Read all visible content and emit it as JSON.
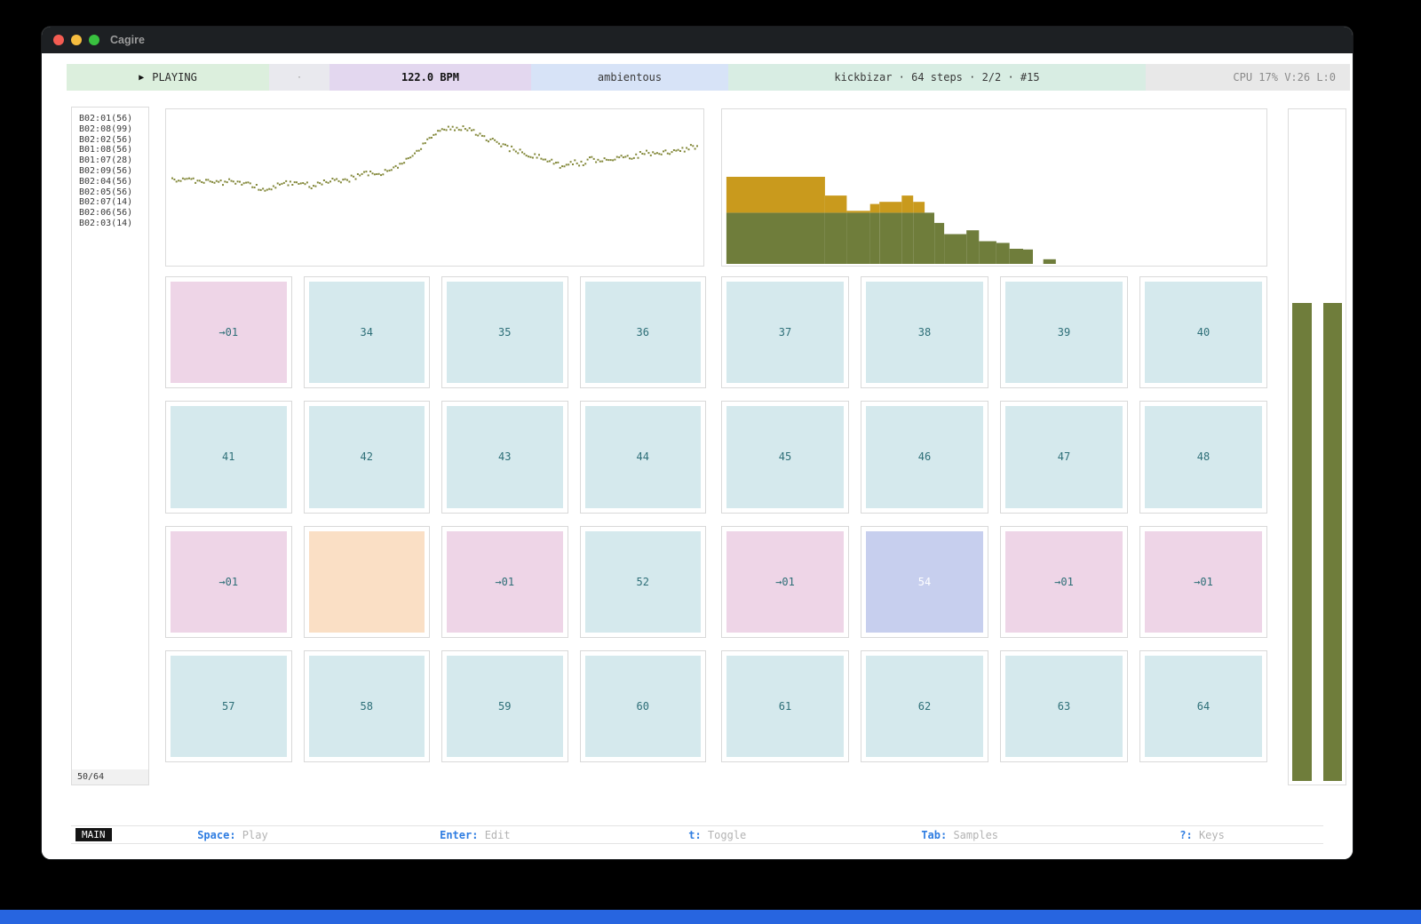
{
  "window": {
    "title": "Cagire"
  },
  "toolbar": {
    "play_icon": "▶",
    "transport": "PLAYING",
    "dot": "·",
    "bpm": "122.0 BPM",
    "scene": "ambientous",
    "pattern_info": "kickbizar · 64 steps · 2/2 · #15",
    "stats": "CPU 17%  V:26  L:0"
  },
  "sidebar": {
    "items": [
      "B02:01(56)",
      "B02:08(99)",
      "B02:02(56)",
      "B01:08(56)",
      "B01:07(28)",
      "B02:09(56)",
      "B02:04(56)",
      "B02:05(56)",
      "B02:07(14)",
      "B02:06(56)",
      "B02:03(14)"
    ],
    "footer": "50/64"
  },
  "chart_data": [
    {
      "type": "scatter",
      "title": "pattern-waveform",
      "xlabel": "",
      "ylabel": "",
      "grid": false,
      "dot_count": 250,
      "keypoints": [
        [
          0.0,
          0.46
        ],
        [
          0.02,
          0.44
        ],
        [
          0.045,
          0.465
        ],
        [
          0.07,
          0.45
        ],
        [
          0.09,
          0.475
        ],
        [
          0.11,
          0.46
        ],
        [
          0.13,
          0.475
        ],
        [
          0.155,
          0.5
        ],
        [
          0.18,
          0.525
        ],
        [
          0.2,
          0.49
        ],
        [
          0.22,
          0.475
        ],
        [
          0.245,
          0.465
        ],
        [
          0.27,
          0.5
        ],
        [
          0.29,
          0.47
        ],
        [
          0.31,
          0.44
        ],
        [
          0.33,
          0.46
        ],
        [
          0.35,
          0.425
        ],
        [
          0.37,
          0.4
        ],
        [
          0.39,
          0.425
        ],
        [
          0.41,
          0.385
        ],
        [
          0.43,
          0.35
        ],
        [
          0.45,
          0.3
        ],
        [
          0.47,
          0.235
        ],
        [
          0.49,
          0.16
        ],
        [
          0.51,
          0.1
        ],
        [
          0.53,
          0.075
        ],
        [
          0.55,
          0.08
        ],
        [
          0.57,
          0.1
        ],
        [
          0.59,
          0.13
        ],
        [
          0.61,
          0.17
        ],
        [
          0.63,
          0.21
        ],
        [
          0.65,
          0.235
        ],
        [
          0.67,
          0.26
        ],
        [
          0.69,
          0.28
        ],
        [
          0.71,
          0.3
        ],
        [
          0.73,
          0.33
        ],
        [
          0.745,
          0.355
        ],
        [
          0.76,
          0.32
        ],
        [
          0.78,
          0.335
        ],
        [
          0.8,
          0.3
        ],
        [
          0.82,
          0.315
        ],
        [
          0.84,
          0.3
        ],
        [
          0.86,
          0.275
        ],
        [
          0.88,
          0.29
        ],
        [
          0.9,
          0.255
        ],
        [
          0.92,
          0.27
        ],
        [
          0.94,
          0.245
        ],
        [
          0.96,
          0.26
        ],
        [
          0.98,
          0.225
        ],
        [
          1.0,
          0.205
        ]
      ]
    },
    {
      "type": "bar",
      "title": "sample-histogram",
      "stacked": true,
      "series_names": [
        "base",
        "accent"
      ],
      "segments": [
        {
          "x0": 0.008,
          "x1": 0.189,
          "g": 0.335,
          "y": 0.235
        },
        {
          "x0": 0.189,
          "x1": 0.229,
          "g": 0.335,
          "y": 0.112
        },
        {
          "x0": 0.229,
          "x1": 0.272,
          "g": 0.335,
          "y": 0.012
        },
        {
          "x0": 0.272,
          "x1": 0.289,
          "g": 0.335,
          "y": 0.057
        },
        {
          "x0": 0.289,
          "x1": 0.33,
          "g": 0.335,
          "y": 0.071
        },
        {
          "x0": 0.33,
          "x1": 0.351,
          "g": 0.335,
          "y": 0.112
        },
        {
          "x0": 0.351,
          "x1": 0.372,
          "g": 0.335,
          "y": 0.071
        },
        {
          "x0": 0.372,
          "x1": 0.39,
          "g": 0.335,
          "y": 0
        },
        {
          "x0": 0.39,
          "x1": 0.408,
          "g": 0.268,
          "y": 0
        },
        {
          "x0": 0.408,
          "x1": 0.449,
          "g": 0.195,
          "y": 0
        },
        {
          "x0": 0.449,
          "x1": 0.472,
          "g": 0.22,
          "y": 0
        },
        {
          "x0": 0.472,
          "x1": 0.504,
          "g": 0.148,
          "y": 0
        },
        {
          "x0": 0.504,
          "x1": 0.528,
          "g": 0.137,
          "y": 0
        },
        {
          "x0": 0.528,
          "x1": 0.553,
          "g": 0.099,
          "y": 0
        },
        {
          "x0": 0.553,
          "x1": 0.571,
          "g": 0.094,
          "y": 0
        },
        {
          "x0": 0.59,
          "x1": 0.613,
          "g": 0.03,
          "y": 0
        }
      ]
    }
  ],
  "grid": {
    "cells": [
      {
        "label": "→01",
        "color": "pink"
      },
      {
        "label": "34",
        "color": "cyan"
      },
      {
        "label": "35",
        "color": "cyan"
      },
      {
        "label": "36",
        "color": "cyan"
      },
      {
        "label": "37",
        "color": "cyan"
      },
      {
        "label": "38",
        "color": "cyan"
      },
      {
        "label": "39",
        "color": "cyan"
      },
      {
        "label": "40",
        "color": "cyan"
      },
      {
        "label": "41",
        "color": "cyan"
      },
      {
        "label": "42",
        "color": "cyan"
      },
      {
        "label": "43",
        "color": "cyan"
      },
      {
        "label": "44",
        "color": "cyan"
      },
      {
        "label": "45",
        "color": "cyan"
      },
      {
        "label": "46",
        "color": "cyan"
      },
      {
        "label": "47",
        "color": "cyan"
      },
      {
        "label": "48",
        "color": "cyan"
      },
      {
        "label": "→01",
        "color": "pink"
      },
      {
        "label": "",
        "color": "peach"
      },
      {
        "label": "→01",
        "color": "pink"
      },
      {
        "label": "52",
        "color": "cyan"
      },
      {
        "label": "→01",
        "color": "pink"
      },
      {
        "label": "54",
        "color": "lavender"
      },
      {
        "label": "→01",
        "color": "pink"
      },
      {
        "label": "→01",
        "color": "pink"
      },
      {
        "label": "57",
        "color": "cyan"
      },
      {
        "label": "58",
        "color": "cyan"
      },
      {
        "label": "59",
        "color": "cyan"
      },
      {
        "label": "60",
        "color": "cyan"
      },
      {
        "label": "61",
        "color": "cyan"
      },
      {
        "label": "62",
        "color": "cyan"
      },
      {
        "label": "63",
        "color": "cyan"
      },
      {
        "label": "64",
        "color": "cyan"
      }
    ]
  },
  "meters": {
    "values": [
      0.715,
      0.715
    ]
  },
  "statusbar": {
    "mode": "MAIN",
    "hints": [
      {
        "key": "Space",
        "desc": "Play"
      },
      {
        "key": "Enter",
        "desc": "Edit"
      },
      {
        "key": "t",
        "desc": "Toggle"
      },
      {
        "key": "Tab",
        "desc": "Samples"
      },
      {
        "key": "?",
        "desc": "Keys"
      }
    ]
  },
  "colors": {
    "toolbar": {
      "transport": "#dcefdd",
      "spacer": "#e9e9ee",
      "bpm": "#e3d7ef",
      "scene": "#d7e3f7",
      "pattern": "#d8ede3",
      "stats": "#e8e8e8"
    },
    "cell": {
      "cyan": "#d5e9ed",
      "pink": "#eed5e7",
      "peach": "#fadfc5",
      "lavender": "#c7cfee"
    },
    "cell_text": "#2e6f78",
    "cell_text_light": "#ffffff",
    "olive": "#6f7d3b",
    "mustard": "#c99a1d",
    "dot": "#83883a",
    "key_blue": "#2f7de1",
    "strip_blue": "#2765e0",
    "traffic": {
      "red": "#f45c52",
      "yellow": "#f6bd3f",
      "green": "#39c13f"
    }
  }
}
